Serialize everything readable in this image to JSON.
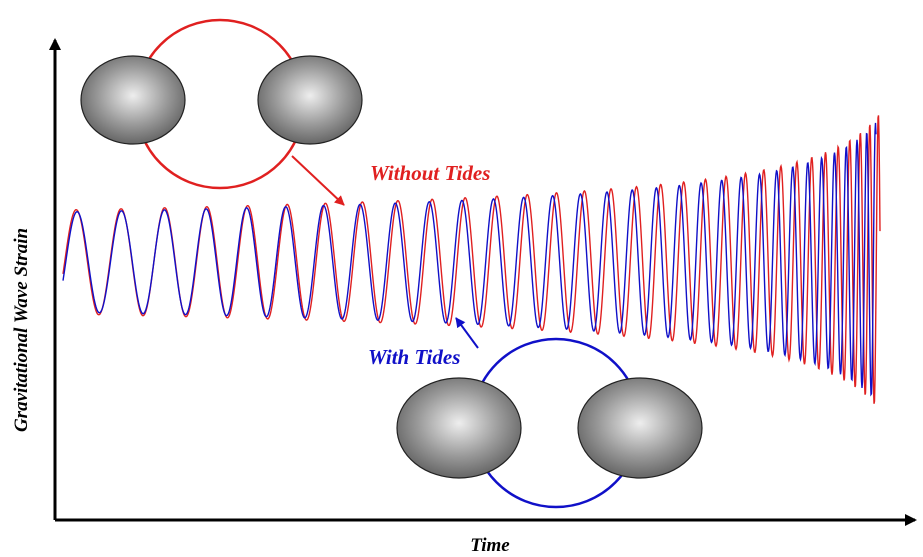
{
  "annotations": {
    "without_tides": "Without Tides",
    "with_tides": "With Tides"
  },
  "axes": {
    "y_label": "Gravitational Wave Strain",
    "x_label": "Time"
  }
}
